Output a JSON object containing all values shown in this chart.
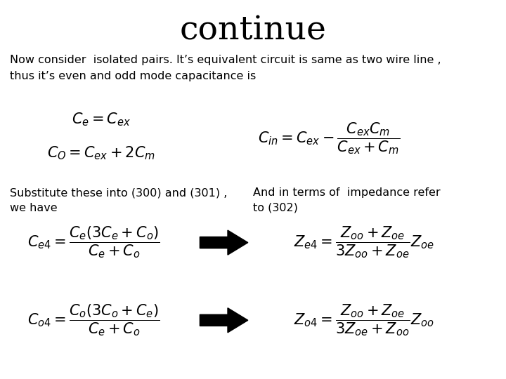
{
  "title": "continue",
  "title_fontsize": 34,
  "title_font": "serif",
  "bg_color": "#ffffff",
  "text_color": "#000000",
  "body_text": "Now consider  isolated pairs. It’s equivalent circuit is same as two wire line ,\nthus it’s even and odd mode capacitance is",
  "body_fontsize": 11.5,
  "substitute_text": "Substitute these into (300) and (301) ,",
  "substitute_text2": "we have",
  "impedance_text": "And in terms of  impedance refer",
  "impedance_text2": "to (302)",
  "eq1": "$C_e = C_{ex}$",
  "eq2": "$C_O = C_{ex} + 2C_m$",
  "eq3": "$C_{in} = C_{ex} - \\dfrac{C_{ex}C_m}{C_{ex}+C_m}$",
  "eq4": "$C_{e4} = \\dfrac{C_e(3C_e+C_o)}{C_e+C_o}$",
  "eq5": "$C_{o4} = \\dfrac{C_o(3C_o+C_e)}{C_e+C_o}$",
  "eq6": "$Z_{e4} = \\dfrac{Z_{oo}+Z_{oe}}{3Z_{oo}+Z_{oe}}Z_{oe}$",
  "eq7": "$Z_{o4} = \\dfrac{Z_{oo}+Z_{oe}}{3Z_{oe}+Z_{oo}}Z_{oo}$",
  "arrow_color": "#000000",
  "eq_fontsize": 14,
  "math_fontsize": 15
}
